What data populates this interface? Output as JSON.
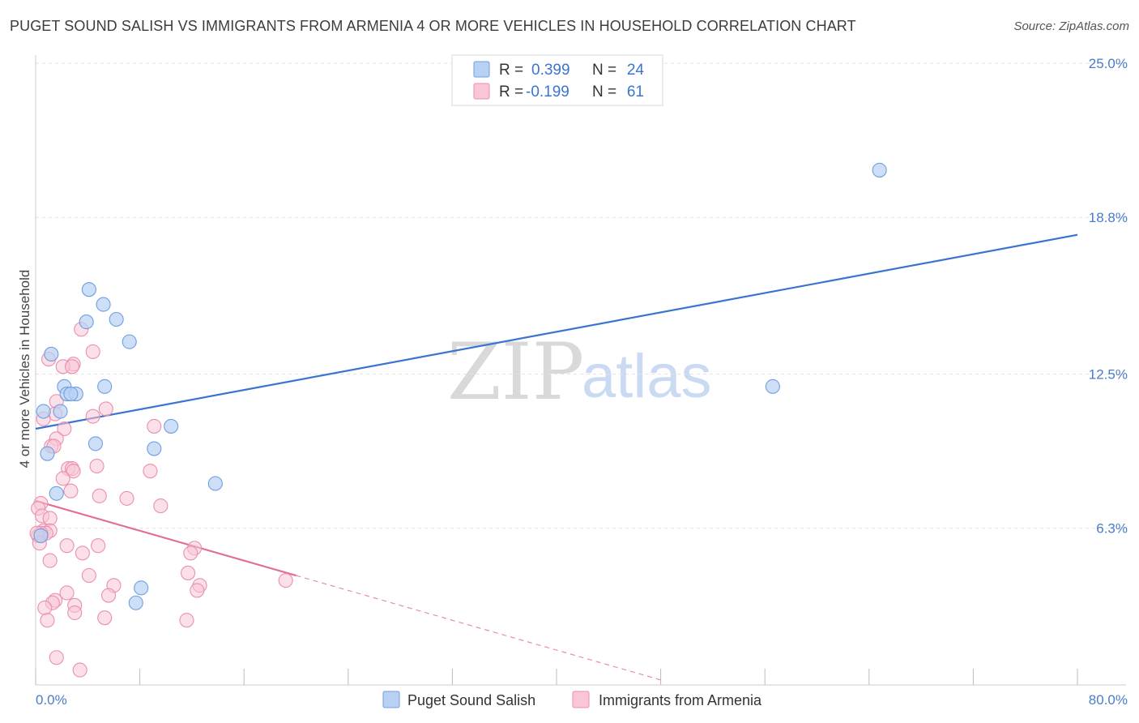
{
  "title": "PUGET SOUND SALISH VS IMMIGRANTS FROM ARMENIA 4 OR MORE VEHICLES IN HOUSEHOLD CORRELATION CHART",
  "source": "Source: ZipAtlas.com",
  "watermark": {
    "zip": "ZIP",
    "atlas": "atlas"
  },
  "colors": {
    "blue_fill": "#b8d1f3",
    "blue_stroke": "#6f9ee0",
    "blue_line": "#3a74d0",
    "pink_fill": "#f8c6d6",
    "pink_stroke": "#ea8fae",
    "pink_line": "#e0709a",
    "grid": "#e3e3e3",
    "axis_text": "#4a7cc7"
  },
  "chart_data": {
    "type": "scatter",
    "title": "PUGET SOUND SALISH VS IMMIGRANTS FROM ARMENIA 4 OR MORE VEHICLES IN HOUSEHOLD CORRELATION CHART",
    "xlabel": "",
    "ylabel": "4 or more Vehicles in Household",
    "xlim": [
      0,
      80
    ],
    "ylim": [
      0,
      25
    ],
    "x_tick_labels": [
      "0.0%",
      "80.0%"
    ],
    "y_ticks": [
      6.3,
      12.5,
      18.8,
      25.0
    ],
    "y_tick_labels": [
      "6.3%",
      "12.5%",
      "18.8%",
      "25.0%"
    ],
    "grid": true,
    "legend": [
      {
        "name": "Puget Sound Salish",
        "r_label": "R =",
        "r_value": "0.399",
        "n_label": "N =",
        "n_value": "24"
      },
      {
        "name": "Immigrants from Armenia",
        "r_label": "R =",
        "r_value": "-0.199",
        "n_label": "N =",
        "n_value": "61"
      }
    ],
    "series": [
      {
        "name": "Puget Sound Salish",
        "points": [
          [
            4.1,
            15.9
          ],
          [
            5.2,
            15.3
          ],
          [
            3.9,
            14.6
          ],
          [
            6.2,
            14.7
          ],
          [
            7.2,
            13.8
          ],
          [
            1.2,
            13.3
          ],
          [
            2.2,
            12.0
          ],
          [
            2.4,
            11.7
          ],
          [
            3.1,
            11.7
          ],
          [
            5.3,
            12.0
          ],
          [
            2.7,
            11.7
          ],
          [
            0.6,
            11.0
          ],
          [
            1.9,
            11.0
          ],
          [
            10.4,
            10.4
          ],
          [
            4.6,
            9.7
          ],
          [
            9.1,
            9.5
          ],
          [
            0.9,
            9.3
          ],
          [
            1.6,
            7.7
          ],
          [
            13.8,
            8.1
          ],
          [
            8.1,
            3.9
          ],
          [
            7.7,
            3.3
          ],
          [
            64.8,
            20.7
          ],
          [
            56.6,
            12.0
          ],
          [
            0.4,
            6.0
          ]
        ],
        "trend": {
          "x0": 0,
          "y0": 10.3,
          "x1": 80,
          "y1": 18.1
        }
      },
      {
        "name": "Immigrants from Armenia",
        "points": [
          [
            3.5,
            14.3
          ],
          [
            4.4,
            13.4
          ],
          [
            2.9,
            12.9
          ],
          [
            1.0,
            13.1
          ],
          [
            2.1,
            12.8
          ],
          [
            2.8,
            12.8
          ],
          [
            1.6,
            11.4
          ],
          [
            5.4,
            11.1
          ],
          [
            1.5,
            10.9
          ],
          [
            4.4,
            10.8
          ],
          [
            0.6,
            10.7
          ],
          [
            9.1,
            10.4
          ],
          [
            2.2,
            10.3
          ],
          [
            1.6,
            9.9
          ],
          [
            1.2,
            9.6
          ],
          [
            1.4,
            9.6
          ],
          [
            4.7,
            8.8
          ],
          [
            2.5,
            8.7
          ],
          [
            2.8,
            8.7
          ],
          [
            8.8,
            8.6
          ],
          [
            2.9,
            8.6
          ],
          [
            2.1,
            8.3
          ],
          [
            2.7,
            7.8
          ],
          [
            4.9,
            7.6
          ],
          [
            7.0,
            7.5
          ],
          [
            9.6,
            7.2
          ],
          [
            0.4,
            7.3
          ],
          [
            0.2,
            7.1
          ],
          [
            0.5,
            6.8
          ],
          [
            1.1,
            6.7
          ],
          [
            0.6,
            6.2
          ],
          [
            1.1,
            6.2
          ],
          [
            0.2,
            6.0
          ],
          [
            0.8,
            6.1
          ],
          [
            0.4,
            6.1
          ],
          [
            2.4,
            5.6
          ],
          [
            4.8,
            5.6
          ],
          [
            12.2,
            5.5
          ],
          [
            3.6,
            5.3
          ],
          [
            11.9,
            5.3
          ],
          [
            1.1,
            5.0
          ],
          [
            4.1,
            4.4
          ],
          [
            11.7,
            4.5
          ],
          [
            19.2,
            4.2
          ],
          [
            6.0,
            4.0
          ],
          [
            12.6,
            4.0
          ],
          [
            12.4,
            3.8
          ],
          [
            2.4,
            3.7
          ],
          [
            5.6,
            3.6
          ],
          [
            1.5,
            3.4
          ],
          [
            1.3,
            3.3
          ],
          [
            3.0,
            3.2
          ],
          [
            0.7,
            3.1
          ],
          [
            3.0,
            2.9
          ],
          [
            5.3,
            2.7
          ],
          [
            0.9,
            2.6
          ],
          [
            11.6,
            2.6
          ],
          [
            1.6,
            1.1
          ],
          [
            3.4,
            0.6
          ],
          [
            0.1,
            6.1
          ],
          [
            0.3,
            5.7
          ]
        ],
        "trend": {
          "x0": 0,
          "y0": 7.4,
          "x1": 20,
          "y1": 4.4,
          "dash_to_x": 48,
          "dash_to_y": 0.2
        }
      }
    ]
  }
}
